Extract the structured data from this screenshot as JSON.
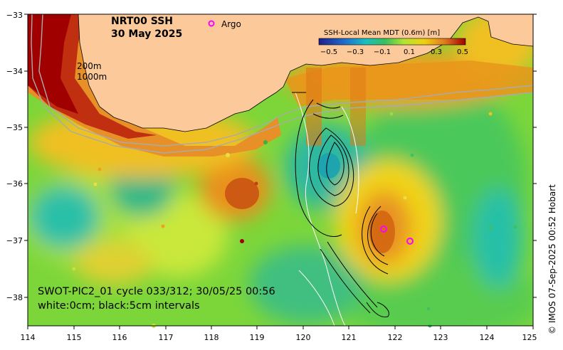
{
  "title": "NRT00 SSH",
  "date": "30 May 2025",
  "legend_argo": "Argo",
  "colorbar": {
    "title": "SSH-Local Mean MDT (0.6m) [m]",
    "ticks": [
      "−0.5",
      "−0.3",
      "−0.1",
      "0.1",
      "0.3",
      "0.5"
    ]
  },
  "contour_labels": {
    "depth_200": "200m",
    "depth_1000": "1000m"
  },
  "swot": {
    "line1": "SWOT-PIC2_01 cycle 033/312; 30/05/25 00:56",
    "line2": "white:0cm; black:5cm intervals"
  },
  "credit": "© IMOS 07-Sep-2025 00:52 Hobart",
  "axes": {
    "x_ticks": [
      "114",
      "115",
      "116",
      "117",
      "118",
      "119",
      "120",
      "121",
      "122",
      "123",
      "124",
      "125"
    ],
    "y_ticks": [
      "−33",
      "−34",
      "−35",
      "−36",
      "−37",
      "−38"
    ]
  },
  "colors": {
    "land": "#fcca9a",
    "argo": "#ff00ff",
    "high": "#a00000",
    "low": "#00c8c8"
  }
}
